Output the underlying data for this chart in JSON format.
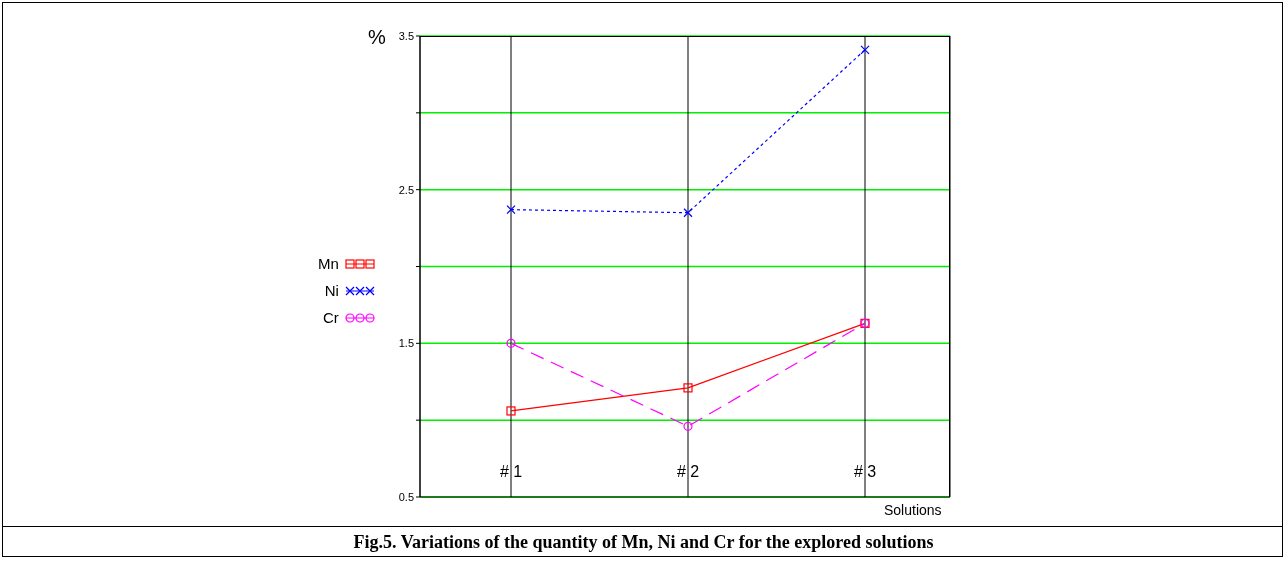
{
  "chart_data": {
    "type": "line",
    "title": "Fig.5. Variations of the quantity of Mn, Ni and Cr for the explored  solutions",
    "xlabel": "Solutions",
    "ylabel": "%",
    "categories": [
      "# 1",
      "# 2",
      "# 3"
    ],
    "series": [
      {
        "name": "Mn",
        "color": "#ff0000",
        "values": [
          1.06,
          1.21,
          1.63
        ],
        "marker": "square",
        "line_style": "solid"
      },
      {
        "name": "Ni",
        "color": "#0000ff",
        "values": [
          2.37,
          2.35,
          3.41
        ],
        "marker": "cross",
        "line_style": "dotted"
      },
      {
        "name": "Cr",
        "color": "#ff00ff",
        "values": [
          1.5,
          0.96,
          1.63
        ],
        "marker": "circle",
        "line_style": "dashed"
      }
    ],
    "ylim": [
      0.5,
      3.5
    ],
    "yticks": [
      0.5,
      {
        "value": 1,
        "label": null
      },
      1.5,
      {
        "value": 2,
        "label": null
      },
      2.5,
      {
        "value": 3,
        "label": null
      },
      3.5
    ],
    "grid": true,
    "legend": "left"
  }
}
